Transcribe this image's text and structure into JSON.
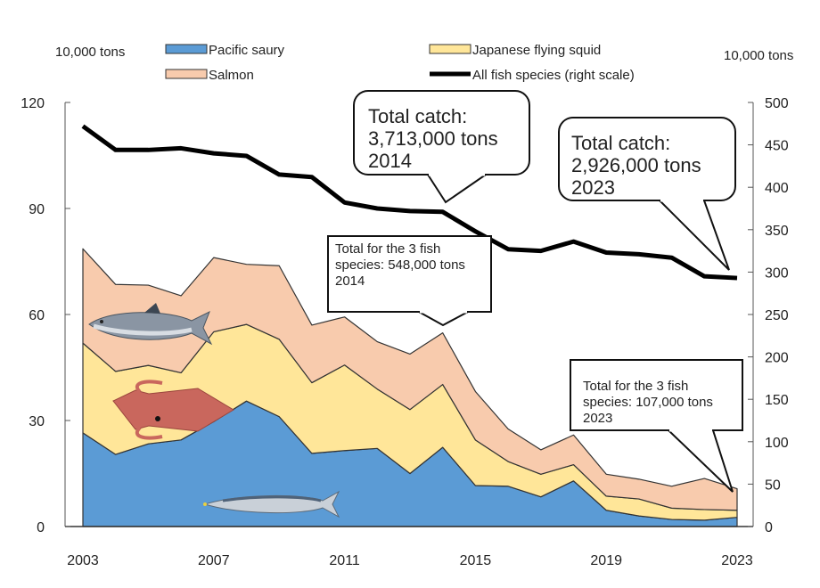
{
  "chart_data": {
    "type": "area",
    "stacked": true,
    "x": [
      2003,
      2004,
      2005,
      2006,
      2007,
      2008,
      2009,
      2010,
      2011,
      2012,
      2013,
      2014,
      2015,
      2016,
      2017,
      2018,
      2019,
      2020,
      2021,
      2022,
      2023
    ],
    "x_ticks": [
      "2003",
      "2007",
      "2011",
      "2015",
      "2019",
      "2023"
    ],
    "left_unit": "10,000 tons",
    "right_unit": "10,000 tons",
    "ylim_left": [
      0,
      120
    ],
    "yticks_left": [
      "0",
      "30",
      "60",
      "90",
      "120"
    ],
    "ylim_right": [
      0,
      500
    ],
    "yticks_right": [
      "0",
      "50",
      "100",
      "150",
      "200",
      "250",
      "300",
      "350",
      "400",
      "450",
      "500"
    ],
    "grid": false,
    "legend_placement": "top",
    "series": [
      {
        "name": "Pacific saury",
        "color": "#5b9bd5",
        "axis": "left",
        "kind": "area",
        "values": [
          26.5,
          20.4,
          23.4,
          24.5,
          29.7,
          35.5,
          31.1,
          20.7,
          21.5,
          22.1,
          15.0,
          22.4,
          11.6,
          11.4,
          8.4,
          12.9,
          4.6,
          3.0,
          2.0,
          1.8,
          2.6
        ]
      },
      {
        "name": "Japanese flying squid",
        "color": "#ffe699",
        "axis": "left",
        "kind": "area",
        "values": [
          25.4,
          23.5,
          22.2,
          19.0,
          25.4,
          21.7,
          21.9,
          20.0,
          24.2,
          16.8,
          18.1,
          17.8,
          12.9,
          7.0,
          6.4,
          4.6,
          4.0,
          4.8,
          3.2,
          3.0,
          2.0
        ]
      },
      {
        "name": "Salmon",
        "color": "#f8cbad",
        "axis": "left",
        "kind": "area",
        "values": [
          26.7,
          24.6,
          22.7,
          21.8,
          21.0,
          17.0,
          20.8,
          16.3,
          13.6,
          13.4,
          15.7,
          14.6,
          13.7,
          9.2,
          6.9,
          8.4,
          6.2,
          5.6,
          6.2,
          8.8,
          6.1
        ]
      },
      {
        "name": "All fish species (right scale)",
        "color": "#000000",
        "axis": "right",
        "kind": "line",
        "values": [
          472,
          444,
          444,
          446,
          440,
          437,
          415,
          412,
          382,
          375,
          372,
          371,
          348,
          327,
          325,
          336,
          323,
          321,
          317,
          295,
          293
        ]
      }
    ],
    "annotations": [
      {
        "lines": [
          "Total catch:",
          "3,713,000 tons",
          "2014"
        ],
        "x": 2014,
        "style": "rounded-large"
      },
      {
        "lines": [
          "Total catch:",
          "2,926,000 tons",
          "2023"
        ],
        "x": 2023,
        "style": "rounded-large"
      },
      {
        "lines": [
          "Total for the 3 fish",
          "species: 548,000 tons",
          "2014"
        ],
        "x": 2014,
        "style": "box-small"
      },
      {
        "lines": [
          "Total for the 3 fish",
          "species: 107,000 tons",
          "2023"
        ],
        "x": 2023,
        "style": "box-small"
      }
    ],
    "illustrations": [
      "salmon-icon",
      "squid-icon",
      "saury-icon"
    ]
  }
}
